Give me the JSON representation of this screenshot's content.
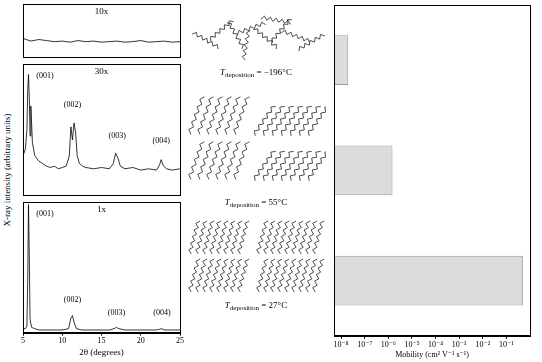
{
  "figure": {
    "ylabel": "X-ray intensity (arbitrary units)"
  },
  "chart_data": [
    {
      "type": "line",
      "title": "10x",
      "color": "#000000",
      "grid": false,
      "tick_labels": false,
      "xlim": [
        5,
        25
      ],
      "ylim": [
        0,
        100
      ],
      "x": [
        5,
        6,
        7,
        8,
        9,
        10,
        11,
        12,
        13,
        14,
        15,
        16,
        17,
        18,
        19,
        20,
        21,
        22,
        23,
        24,
        25
      ],
      "values": [
        35,
        30,
        33,
        31,
        29,
        30,
        28,
        31,
        29,
        30,
        28,
        29,
        30,
        28,
        29,
        31,
        28,
        29,
        30,
        28,
        29
      ],
      "annotations": []
    },
    {
      "type": "line",
      "title": "30x",
      "color": "#000000",
      "grid": false,
      "tick_labels": false,
      "xlim": [
        5,
        25
      ],
      "ylim": [
        0,
        100
      ],
      "x": [
        5,
        5.3,
        5.5,
        5.6,
        5.7,
        5.8,
        5.9,
        6.0,
        6.2,
        6.5,
        7,
        7.5,
        8,
        8.5,
        9,
        9.5,
        10,
        10.5,
        10.9,
        11.1,
        11.3,
        11.5,
        11.7,
        11.9,
        12.2,
        12.6,
        13,
        14,
        15,
        16,
        16.5,
        16.8,
        17.1,
        17.4,
        18,
        19,
        20,
        21,
        22,
        22.4,
        22.6,
        22.9,
        23.3,
        24,
        25
      ],
      "values": [
        30,
        35,
        50,
        80,
        92,
        75,
        45,
        68,
        40,
        30,
        26,
        24,
        22,
        21,
        22,
        20,
        21,
        22,
        30,
        52,
        42,
        55,
        48,
        30,
        24,
        22,
        21,
        20,
        21,
        20,
        24,
        32,
        28,
        22,
        20,
        21,
        19,
        20,
        19,
        23,
        27,
        22,
        20,
        19,
        20
      ],
      "annotations": [
        {
          "text": "(001)",
          "x": 7.8,
          "y": 88
        },
        {
          "text": "(002)",
          "x": 11.3,
          "y": 66
        },
        {
          "text": "(003)",
          "x": 17,
          "y": 42
        },
        {
          "text": "(004)",
          "x": 22.6,
          "y": 38
        }
      ]
    },
    {
      "type": "line",
      "title": "1x",
      "color": "#000000",
      "grid": false,
      "tick_labels": "x",
      "xlabel": "2θ (degrees)",
      "xlim": [
        5,
        25
      ],
      "ylim": [
        0,
        100
      ],
      "xticks": [
        5,
        10,
        15,
        20,
        25
      ],
      "x": [
        5,
        5.3,
        5.5,
        5.6,
        5.7,
        5.8,
        5.9,
        6.1,
        6.5,
        7,
        8,
        9,
        10,
        10.8,
        11.1,
        11.3,
        11.5,
        11.8,
        12.5,
        14,
        16,
        16.6,
        16.9,
        17.2,
        18,
        20,
        22,
        22.4,
        22.7,
        23,
        24,
        25
      ],
      "values": [
        3,
        3,
        5,
        40,
        98,
        60,
        10,
        4,
        3,
        2,
        2,
        2,
        2,
        3,
        11,
        13,
        8,
        3,
        2,
        2,
        2,
        3,
        4,
        3,
        2,
        2,
        2,
        2.5,
        3,
        2,
        2,
        2
      ],
      "annotations": [
        {
          "text": "(001)",
          "x": 7.8,
          "y": 88
        },
        {
          "text": "(002)",
          "x": 11.3,
          "y": 22
        },
        {
          "text": "(003)",
          "x": 16.9,
          "y": 12
        },
        {
          "text": "(004)",
          "x": 22.7,
          "y": 12
        }
      ]
    },
    {
      "type": "bar",
      "orientation": "horizontal",
      "log": "x",
      "grid": false,
      "tick_labels": "x",
      "xlabel": "Mobility (cm² V⁻¹ s⁻¹)",
      "color": "#dcdcdc",
      "categories": [
        null,
        null,
        null
      ],
      "values": [
        [
          5e-09,
          2e-08
        ],
        [
          5e-09,
          1.5e-06
        ],
        [
          5e-09,
          0.5
        ]
      ],
      "xlim": [
        5e-09,
        1
      ],
      "xticks": [
        {
          "value": 1e-08,
          "label": "10⁻⁸"
        },
        {
          "value": 1e-07,
          "label": "10⁻⁷"
        },
        {
          "value": 1e-06,
          "label": "10⁻⁶"
        },
        {
          "value": 1e-05,
          "label": "10⁻⁵"
        },
        {
          "value": 0.0001,
          "label": "10⁻⁴"
        },
        {
          "value": 0.001,
          "label": "10⁻³"
        },
        {
          "value": 0.01,
          "label": "10⁻²"
        },
        {
          "value": 0.1,
          "label": "10⁻¹"
        }
      ]
    }
  ],
  "diagram": {
    "labels": [
      {
        "symbol": "T",
        "subscript": "deposition",
        "text": " = −196°C"
      },
      {
        "symbol": "T",
        "subscript": "deposition",
        "text": " = 55°C"
      },
      {
        "symbol": "T",
        "subscript": "deposition",
        "text": " = 27°C"
      }
    ]
  }
}
